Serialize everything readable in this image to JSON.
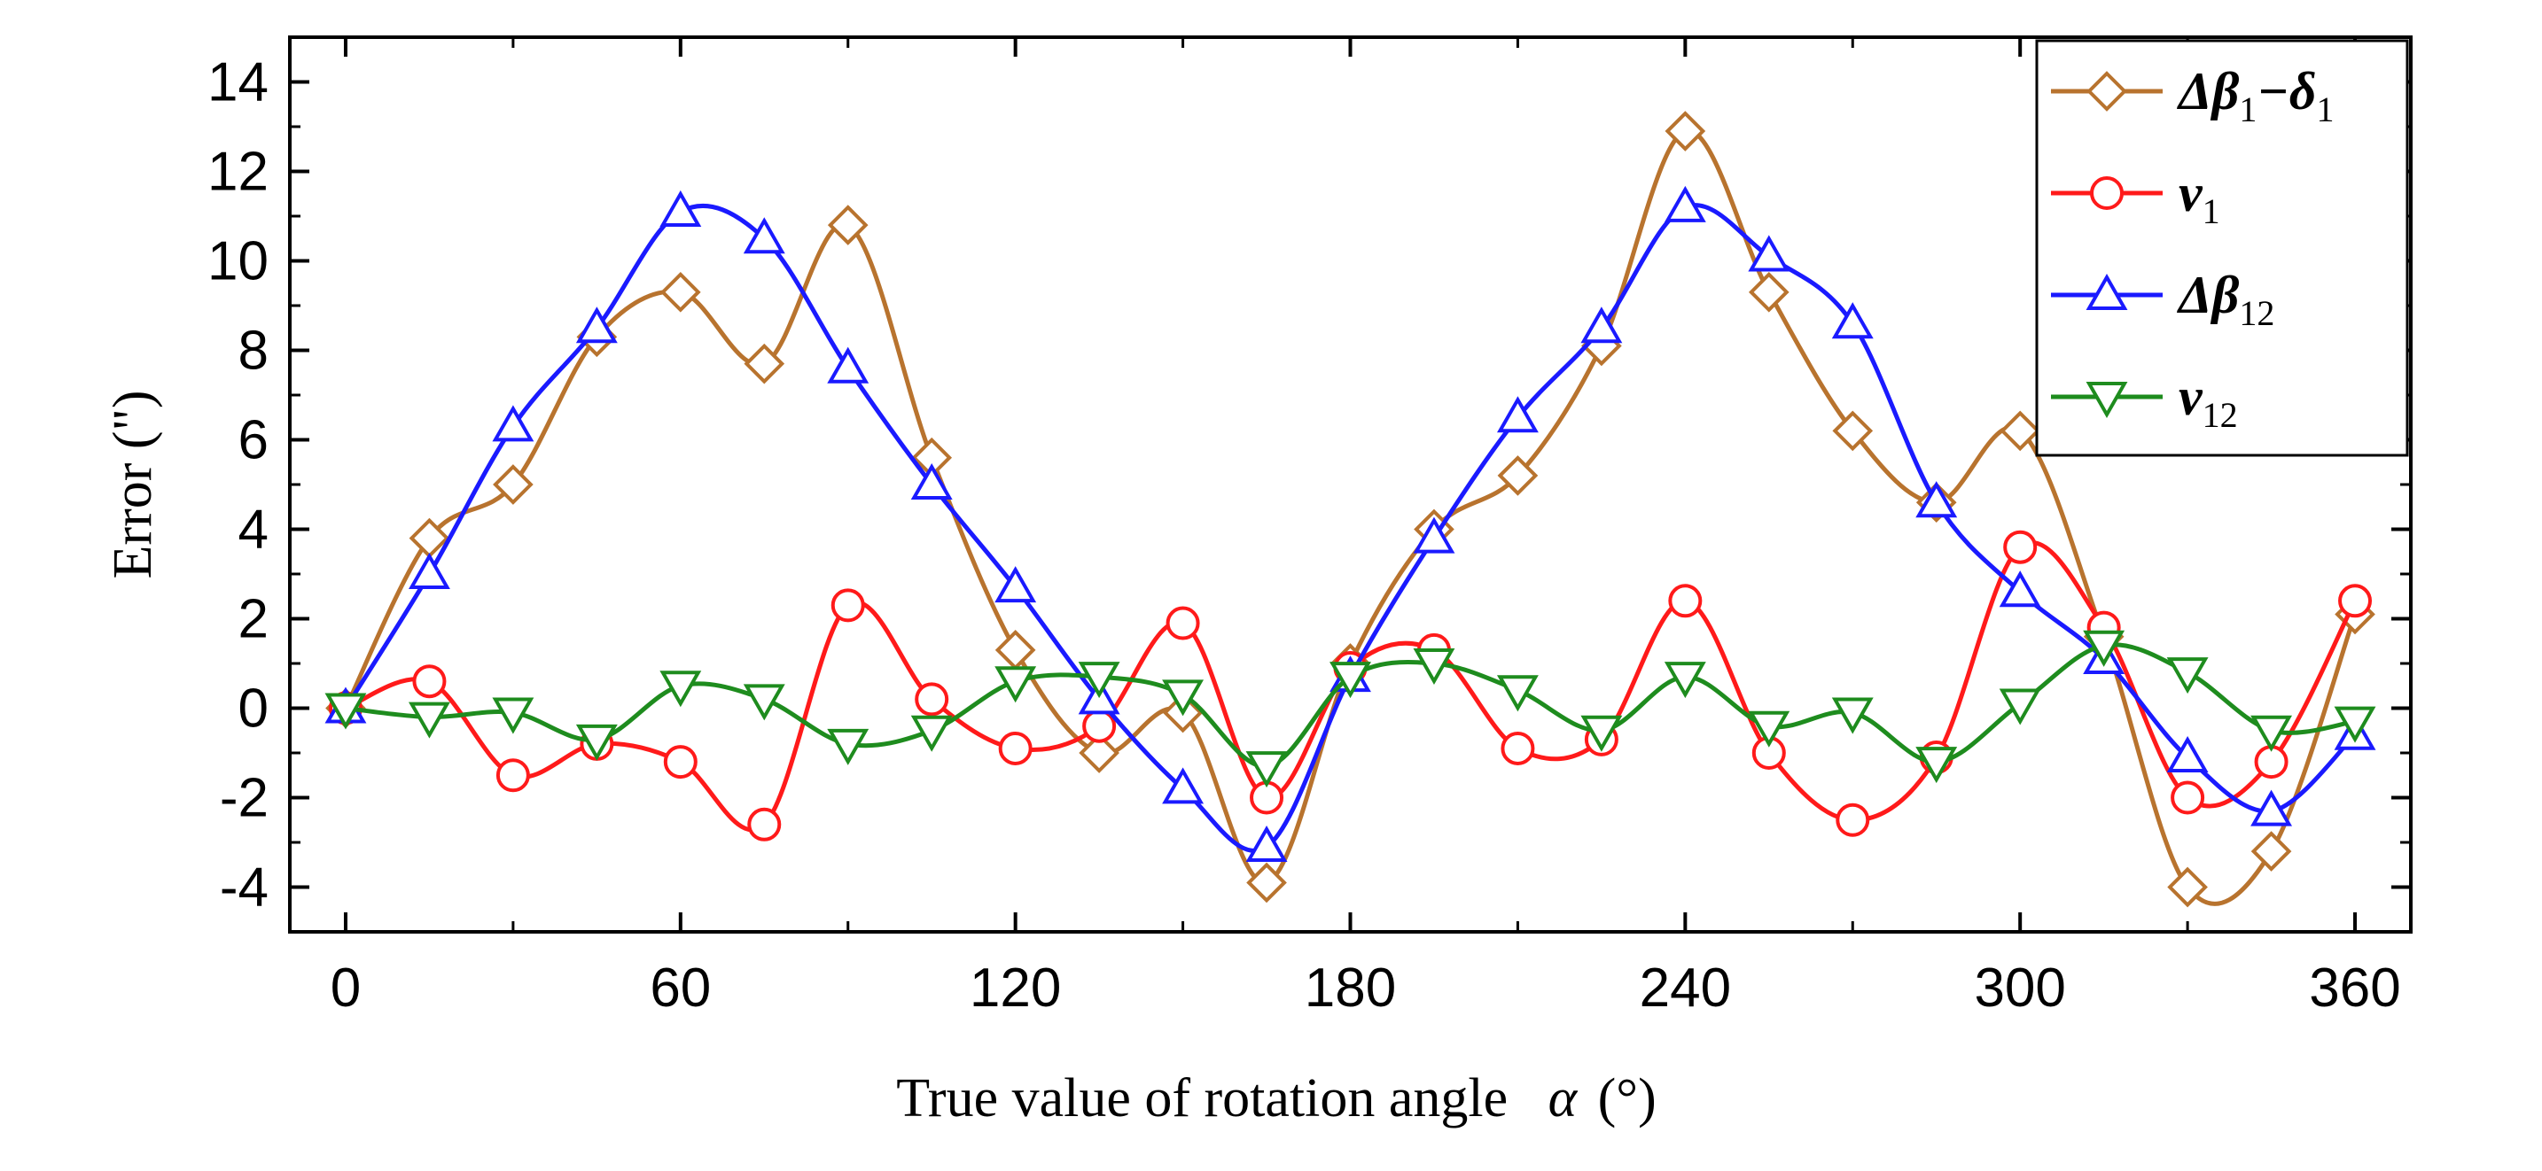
{
  "chart_data": {
    "type": "line",
    "title": "",
    "xlabel": "True value of rotation angle",
    "xlabel_symbol": "α",
    "xlabel_unit": "(°)",
    "ylabel": "Error  (\")",
    "xlim": [
      -10,
      370
    ],
    "ylim": [
      -5,
      15
    ],
    "xticks": [
      0,
      60,
      120,
      180,
      240,
      300,
      360
    ],
    "yticks": [
      -4,
      -2,
      0,
      2,
      4,
      6,
      8,
      10,
      12,
      14
    ],
    "legend_position": "top-right",
    "grid": false,
    "x": [
      0,
      15,
      30,
      45,
      60,
      75,
      90,
      105,
      120,
      135,
      150,
      165,
      180,
      195,
      210,
      225,
      240,
      255,
      270,
      285,
      300,
      315,
      330,
      345,
      360
    ],
    "series": [
      {
        "name": "Δβ1−δ1",
        "legend_symbol": "Δβ",
        "legend_sub": "1",
        "legend_suffix": "−δ",
        "legend_suffix_sub": "1",
        "color": "#B8732E",
        "marker": "diamond",
        "values": [
          0,
          3.8,
          5.0,
          8.3,
          9.3,
          7.7,
          10.8,
          5.6,
          1.3,
          -1.0,
          -0.1,
          -3.9,
          1.0,
          4.0,
          5.2,
          8.1,
          12.9,
          9.3,
          6.2,
          4.6,
          6.2,
          1.6,
          -4.0,
          -3.2,
          2.1
        ]
      },
      {
        "name": "v1",
        "legend_symbol": "v",
        "legend_sub": "1",
        "color": "#FF1A1A",
        "marker": "circle",
        "values": [
          0,
          0.6,
          -1.5,
          -0.8,
          -1.2,
          -2.6,
          2.3,
          0.2,
          -0.9,
          -0.4,
          1.9,
          -2.0,
          0.9,
          1.3,
          -0.9,
          -0.7,
          2.4,
          -1.0,
          -2.5,
          -1.1,
          3.6,
          1.8,
          -2.0,
          -1.2,
          2.4
        ]
      },
      {
        "name": "Δβ12",
        "legend_symbol": "Δβ",
        "legend_sub": "12",
        "color": "#1A1AFF",
        "marker": "triangle-up",
        "values": [
          0,
          3.0,
          6.3,
          8.5,
          11.1,
          10.5,
          7.6,
          5.0,
          2.7,
          0.2,
          -1.8,
          -3.1,
          0.7,
          3.8,
          6.5,
          8.5,
          11.2,
          10.1,
          8.6,
          4.6,
          2.6,
          1.1,
          -1.1,
          -2.3,
          -0.6
        ]
      },
      {
        "name": "v12",
        "legend_symbol": "v",
        "legend_sub": "12",
        "color": "#1E8C1E",
        "marker": "triangle-down",
        "values": [
          0,
          -0.2,
          -0.1,
          -0.7,
          0.5,
          0.2,
          -0.8,
          -0.5,
          0.6,
          0.7,
          0.3,
          -1.3,
          0.7,
          1.0,
          0.4,
          -0.5,
          0.7,
          -0.4,
          -0.1,
          -1.2,
          0.1,
          1.4,
          0.8,
          -0.5,
          -0.3
        ]
      }
    ]
  }
}
